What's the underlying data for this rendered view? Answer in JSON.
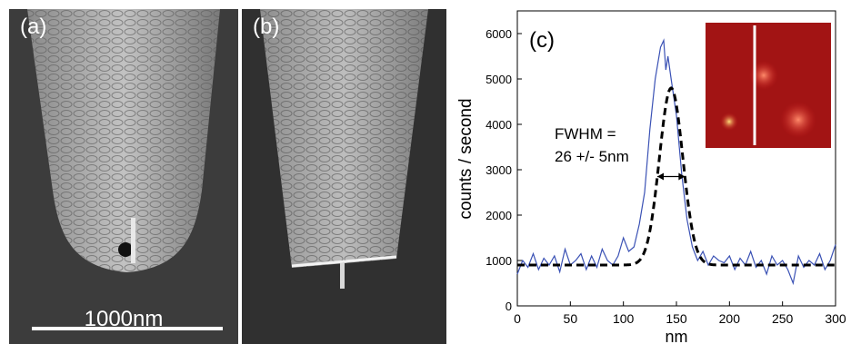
{
  "panel_a": {
    "label": "(a)",
    "scale_bar_label": "1000nm"
  },
  "panel_b": {
    "label": "(b)"
  },
  "chart_data": {
    "type": "line",
    "panel_label": "(c)",
    "xlabel": "nm",
    "ylabel": "counts / second",
    "xlim": [
      0,
      300
    ],
    "ylim": [
      0,
      6500
    ],
    "x_ticks": [
      0,
      50,
      100,
      150,
      200,
      250,
      300
    ],
    "y_ticks": [
      0,
      1000,
      2000,
      3000,
      4000,
      5000,
      6000
    ],
    "annotation_line1": "FWHM =",
    "annotation_line2": "26 +/- 5nm",
    "grid": false,
    "series": [
      {
        "style": "measured",
        "color": "#3b52b5",
        "x": [
          0,
          5,
          10,
          15,
          20,
          25,
          30,
          35,
          40,
          45,
          50,
          55,
          60,
          65,
          70,
          75,
          80,
          85,
          90,
          95,
          100,
          105,
          110,
          115,
          120,
          125,
          130,
          135,
          138,
          140,
          142,
          145,
          150,
          155,
          160,
          165,
          170,
          175,
          180,
          185,
          190,
          195,
          200,
          205,
          210,
          215,
          220,
          225,
          230,
          235,
          240,
          245,
          250,
          255,
          260,
          265,
          270,
          275,
          280,
          285,
          290,
          295,
          300
        ],
        "y": [
          700,
          1000,
          850,
          1150,
          800,
          1050,
          900,
          1100,
          750,
          1250,
          900,
          1000,
          1150,
          800,
          1100,
          850,
          1250,
          1000,
          900,
          1100,
          1500,
          1200,
          1300,
          1800,
          2500,
          3900,
          5000,
          5700,
          5850,
          5200,
          5500,
          5000,
          4200,
          2900,
          1900,
          1300,
          1000,
          1200,
          900,
          1100,
          1000,
          950,
          1100,
          800,
          1050,
          900,
          1200,
          850,
          1000,
          700,
          1100,
          900,
          1000,
          800,
          500,
          1100,
          850,
          1000,
          900,
          1150,
          800,
          1000,
          1350
        ]
      },
      {
        "style": "fit",
        "color": "#000000",
        "baseline": 900,
        "amplitude": 3900,
        "center": 145,
        "fwhm": 26
      }
    ]
  }
}
